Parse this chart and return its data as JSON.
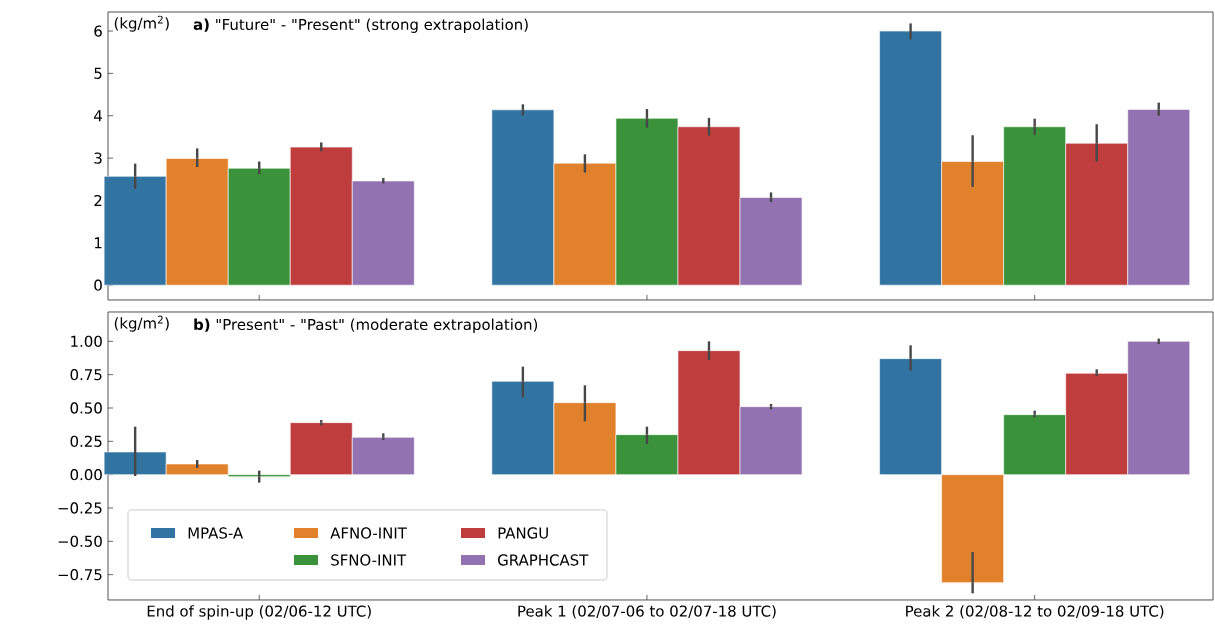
{
  "chart_data": [
    {
      "type": "bar",
      "title": "**a)** \"Future\" - \"Present\" (strong extrapolation)",
      "ylabel": "(kg/m$^{2}$)",
      "categories": [
        null,
        null,
        null
      ],
      "series": [
        {
          "color": "#3274a1",
          "values": [
            2.57,
            4.14,
            6.0
          ],
          "errors": [
            [
              2.27,
              2.87
            ],
            [
              4.01,
              4.27
            ],
            [
              5.8,
              6.18
            ]
          ]
        },
        {
          "color": "#e1812c",
          "values": [
            2.99,
            2.88,
            2.92
          ],
          "errors": [
            [
              2.79,
              3.23
            ],
            [
              2.66,
              3.09
            ],
            [
              2.32,
              3.54
            ]
          ]
        },
        {
          "color": "#3a923a",
          "values": [
            2.76,
            3.94,
            3.74
          ],
          "errors": [
            [
              2.62,
              2.92
            ],
            [
              3.72,
              4.16
            ],
            [
              3.55,
              3.93
            ]
          ]
        },
        {
          "color": "#c03d3e",
          "values": [
            3.26,
            3.74,
            3.35
          ],
          "errors": [
            [
              3.16,
              3.37
            ],
            [
              3.53,
              3.95
            ],
            [
              2.92,
              3.8
            ]
          ]
        },
        {
          "color": "#9372b2",
          "values": [
            2.46,
            2.07,
            4.15
          ],
          "errors": [
            [
              2.4,
              2.53
            ],
            [
              1.96,
              2.19
            ],
            [
              4.0,
              4.31
            ]
          ]
        }
      ],
      "ylim": [
        -0.35,
        6.45
      ],
      "yticks": [
        0,
        1,
        2,
        3,
        4,
        5,
        6
      ],
      "tick_labels": "y"
    },
    {
      "type": "bar",
      "title": "**b)** \"Present\" - \"Past\" (moderate extrapolation)",
      "ylabel": "(kg/m$^{2}$)",
      "categories": [
        "End of spin-up (02/06-12 UTC)",
        "Peak 1 (02/07-06 to 02/07-18 UTC)",
        "Peak 2 (02/08-12 to 02/09-18 UTC)"
      ],
      "series": [
        {
          "name": "MPAS-A",
          "color": "#3274a1",
          "values": [
            0.17,
            0.7,
            0.87
          ],
          "errors": [
            [
              -0.01,
              0.36
            ],
            [
              0.58,
              0.81
            ],
            [
              0.78,
              0.97
            ]
          ]
        },
        {
          "name": "AFNO-INIT",
          "color": "#e1812c",
          "values": [
            0.08,
            0.54,
            -0.81
          ],
          "errors": [
            [
              0.05,
              0.11
            ],
            [
              0.4,
              0.67
            ],
            [
              -0.89,
              -0.58
            ]
          ]
        },
        {
          "name": "SFNO-INIT",
          "color": "#3a923a",
          "values": [
            -0.015,
            0.3,
            0.45
          ],
          "errors": [
            [
              -0.06,
              0.03
            ],
            [
              0.23,
              0.36
            ],
            [
              0.43,
              0.48
            ]
          ]
        },
        {
          "name": "PANGU",
          "color": "#c03d3e",
          "values": [
            0.39,
            0.93,
            0.76
          ],
          "errors": [
            [
              0.37,
              0.41
            ],
            [
              0.86,
              1.0
            ],
            [
              0.74,
              0.79
            ]
          ]
        },
        {
          "name": "GRAPHCAST",
          "color": "#9372b2",
          "values": [
            0.28,
            0.51,
            1.0
          ],
          "errors": [
            [
              0.26,
              0.31
            ],
            [
              0.49,
              0.53
            ],
            [
              0.98,
              1.02
            ]
          ]
        }
      ],
      "ylim": [
        -0.94,
        1.22
      ],
      "yticks": [
        {
          "value": -0.75,
          "label": "−0.75"
        },
        {
          "value": -0.5,
          "label": "−0.50"
        },
        {
          "value": -0.25,
          "label": "−0.25"
        },
        {
          "value": 0,
          "label": "0.00"
        },
        {
          "value": 0.25,
          "label": "0.25"
        },
        {
          "value": 0.5,
          "label": "0.50"
        },
        {
          "value": 0.75,
          "label": "0.75"
        },
        {
          "value": 1,
          "label": "1.00"
        }
      ],
      "legend": "bottom left"
    }
  ]
}
